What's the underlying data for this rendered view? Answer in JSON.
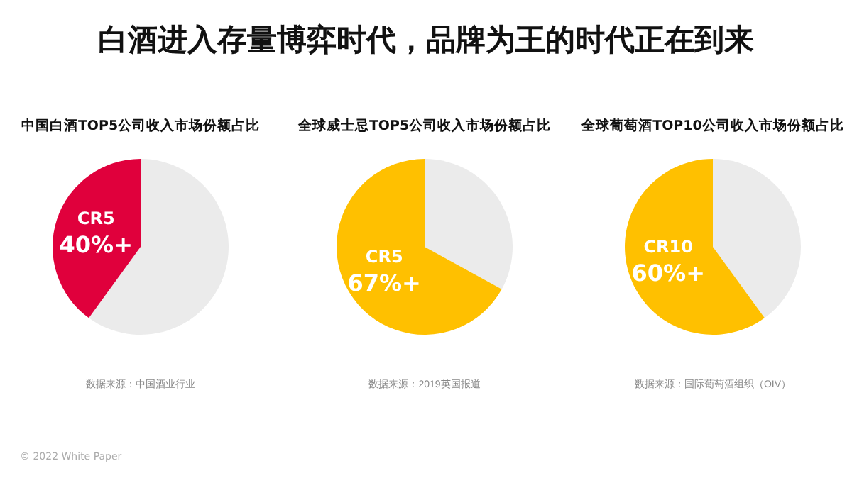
{
  "chart_data": [
    {
      "type": "other",
      "title": "白酒进入存量博弈时代，品牌为王的时代正在到来",
      "annotations": [
        "© 2022 White Paper"
      ]
    },
    {
      "type": "pie",
      "title": "中国白酒TOP5公司收入市场份额占比",
      "categories": [
        null,
        "CR5"
      ],
      "values": [
        60,
        40
      ],
      "colors": [
        "#ebebeb",
        "#e0003c"
      ],
      "value_labels": [
        null,
        "40%+"
      ],
      "annotations": [
        "数据来源：中国酒业行业"
      ]
    },
    {
      "type": "pie",
      "title": "全球威士忌TOP5公司收入市场份额占比",
      "categories": [
        null,
        "CR5"
      ],
      "values": [
        33,
        67
      ],
      "colors": [
        "#ebebeb",
        "#ffc000"
      ],
      "value_labels": [
        null,
        "67%+"
      ],
      "annotations": [
        "数据来源：2019英国报道"
      ]
    },
    {
      "type": "pie",
      "title": "全球葡萄酒TOP10公司收入市场份额占比",
      "categories": [
        null,
        "CR10"
      ],
      "values": [
        40,
        60
      ],
      "colors": [
        "#ebebeb",
        "#ffc000"
      ],
      "value_labels": [
        null,
        "60%+"
      ],
      "annotations": [
        "数据来源：国际葡萄酒组织（OIV）"
      ]
    }
  ]
}
